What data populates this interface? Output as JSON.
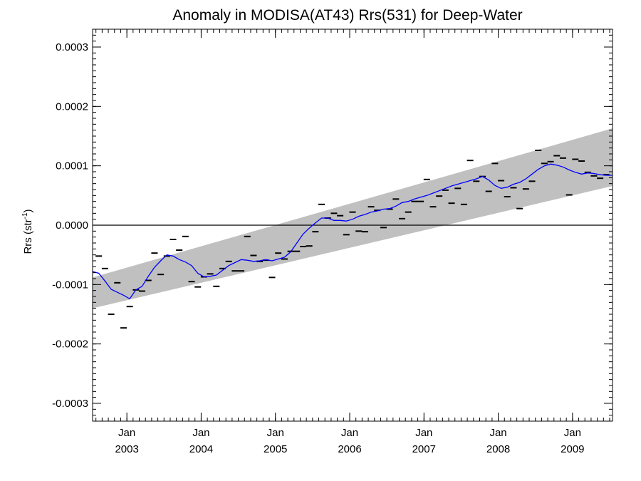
{
  "chart_data": {
    "type": "scatter",
    "title": "Anomaly in MODISA(AT43) Rrs(531) for Deep-Water",
    "ylabel": "Rrs (str",
    "ylabel_sup": "-1",
    "ylabel_close": ")",
    "xlim": [
      "2002-07-15",
      "2009-07-15"
    ],
    "ylim": [
      -0.00033,
      0.00033
    ],
    "y_ticks": [
      -0.0003,
      -0.0002,
      -0.0001,
      0.0,
      0.0001,
      0.0002,
      0.0003
    ],
    "y_tick_labels": [
      "-0.0003",
      "-0.0002",
      "-0.0001",
      "0.0000",
      "0.0001",
      "0.0002",
      "0.0003"
    ],
    "x_ticks": [
      {
        "date": "2003-01-01",
        "month": "Jan",
        "year": "2003"
      },
      {
        "date": "2004-01-01",
        "month": "Jan",
        "year": "2004"
      },
      {
        "date": "2005-01-01",
        "month": "Jan",
        "year": "2005"
      },
      {
        "date": "2006-01-01",
        "month": "Jan",
        "year": "2006"
      },
      {
        "date": "2007-01-01",
        "month": "Jan",
        "year": "2007"
      },
      {
        "date": "2008-01-01",
        "month": "Jan",
        "year": "2008"
      },
      {
        "date": "2009-01-01",
        "month": "Jan",
        "year": "2009"
      }
    ],
    "zero_line": 0.0,
    "band": {
      "color": "#c0c0c0",
      "lower": [
        [
          "2002-07-15",
          -0.00014
        ],
        [
          "2009-07-15",
          6.6e-05
        ]
      ],
      "upper": [
        [
          "2002-07-15",
          -8.8e-05
        ],
        [
          "2009-07-15",
          0.000163
        ]
      ]
    },
    "series": [
      {
        "kind": "monthly",
        "marker": "dash",
        "color": "#000000",
        "x": [
          "2002-08",
          "2002-09",
          "2002-10",
          "2002-11",
          "2002-12",
          "2003-01",
          "2003-02",
          "2003-03",
          "2003-04",
          "2003-05",
          "2003-06",
          "2003-07",
          "2003-08",
          "2003-09",
          "2003-10",
          "2003-11",
          "2003-12",
          "2004-01",
          "2004-02",
          "2004-03",
          "2004-04",
          "2004-05",
          "2004-06",
          "2004-07",
          "2004-08",
          "2004-09",
          "2004-10",
          "2004-11",
          "2004-12",
          "2005-01",
          "2005-02",
          "2005-03",
          "2005-04",
          "2005-05",
          "2005-06",
          "2005-07",
          "2005-08",
          "2005-09",
          "2005-10",
          "2005-11",
          "2005-12",
          "2006-01",
          "2006-02",
          "2006-03",
          "2006-04",
          "2006-05",
          "2006-06",
          "2006-07",
          "2006-08",
          "2006-09",
          "2006-10",
          "2006-11",
          "2006-12",
          "2007-01",
          "2007-02",
          "2007-03",
          "2007-04",
          "2007-05",
          "2007-06",
          "2007-07",
          "2007-08",
          "2007-09",
          "2007-10",
          "2007-11",
          "2007-12",
          "2008-01",
          "2008-02",
          "2008-03",
          "2008-04",
          "2008-05",
          "2008-06",
          "2008-07",
          "2008-08",
          "2008-09",
          "2008-10",
          "2008-11",
          "2008-12",
          "2009-01",
          "2009-02",
          "2009-03",
          "2009-04",
          "2009-05",
          "2009-06"
        ],
        "y": [
          -5.2e-05,
          -7.3e-05,
          -0.00015,
          -9.7e-05,
          -0.000173,
          -0.000137,
          -0.000109,
          -0.000111,
          -9.3e-05,
          -4.7e-05,
          -8.3e-05,
          -5.2e-05,
          -2.4e-05,
          -4.2e-05,
          -1.9e-05,
          -9.5e-05,
          -0.000104,
          -8.7e-05,
          -8.2e-05,
          -0.000103,
          -7.3e-05,
          -6.1e-05,
          -7.7e-05,
          -7.7e-05,
          -1.9e-05,
          -5.1e-05,
          -6.1e-05,
          -5.9e-05,
          -8.8e-05,
          -4.7e-05,
          -5.7e-05,
          -4.4e-05,
          -4.4e-05,
          -3.6e-05,
          -3.5e-05,
          -1.1e-05,
          3.5e-05,
          1.2e-05,
          2e-05,
          1.6e-05,
          -1.6e-05,
          2.2e-05,
          -1e-05,
          -1.1e-05,
          3.1e-05,
          2.5e-05,
          -4e-06,
          2.7e-05,
          4.4e-05,
          1.1e-05,
          2.2e-05,
          4e-05,
          4e-05,
          7.7e-05,
          3.1e-05,
          4.9e-05,
          5.9e-05,
          3.7e-05,
          6.2e-05,
          3.5e-05,
          0.000109,
          7.4e-05,
          8.2e-05,
          5.7e-05,
          0.000104,
          7.5e-05,
          4.8e-05,
          6.3e-05,
          2.8e-05,
          6.1e-05,
          7.4e-05,
          0.000126,
          0.000104,
          0.000107,
          0.000117,
          0.000113,
          5.1e-05,
          0.000111,
          0.000108,
          8.9e-05,
          8.3e-05,
          7.9e-05,
          8.5e-05
        ]
      },
      {
        "kind": "running-mean",
        "marker": "line",
        "color": "#0000ff",
        "x": [
          "2002-07-15",
          "2002-08-15",
          "2002-09-15",
          "2002-10-15",
          "2002-11-15",
          "2002-12-15",
          "2003-01-15",
          "2003-02-15",
          "2003-03-15",
          "2003-04-15",
          "2003-05-15",
          "2003-06-15",
          "2003-07-15",
          "2003-08-15",
          "2003-09-15",
          "2003-10-15",
          "2003-11-15",
          "2003-12-15",
          "2004-01-15",
          "2004-02-15",
          "2004-03-15",
          "2004-04-15",
          "2004-05-15",
          "2004-06-15",
          "2004-07-15",
          "2004-08-15",
          "2004-09-15",
          "2004-10-15",
          "2004-11-15",
          "2004-12-15",
          "2005-01-15",
          "2005-02-15",
          "2005-03-15",
          "2005-04-15",
          "2005-05-15",
          "2005-06-15",
          "2005-07-15",
          "2005-08-15",
          "2005-09-15",
          "2005-10-15",
          "2005-11-15",
          "2005-12-15",
          "2006-01-15",
          "2006-02-15",
          "2006-03-15",
          "2006-04-15",
          "2006-05-15",
          "2006-06-15",
          "2006-07-15",
          "2006-08-15",
          "2006-09-15",
          "2006-10-15",
          "2006-11-15",
          "2006-12-15",
          "2007-01-15",
          "2007-02-15",
          "2007-03-15",
          "2007-04-15",
          "2007-05-15",
          "2007-06-15",
          "2007-07-15",
          "2007-08-15",
          "2007-09-15",
          "2007-10-15",
          "2007-11-15",
          "2007-12-15",
          "2008-01-15",
          "2008-02-15",
          "2008-03-15",
          "2008-04-15",
          "2008-05-15",
          "2008-06-15",
          "2008-07-15",
          "2008-08-15",
          "2008-09-15",
          "2008-10-15",
          "2008-11-15",
          "2008-12-15",
          "2009-01-15",
          "2009-02-15",
          "2009-03-15",
          "2009-04-15",
          "2009-05-15",
          "2009-06-15",
          "2009-07-15"
        ],
        "y": [
          -7.8e-05,
          -8.1e-05,
          -9.4e-05,
          -0.000108,
          -0.000113,
          -0.000118,
          -0.000124,
          -0.000109,
          -0.000103,
          -8.6e-05,
          -7.1e-05,
          -6e-05,
          -5e-05,
          -5.2e-05,
          -5.8e-05,
          -6.2e-05,
          -6.8e-05,
          -8.1e-05,
          -8.7e-05,
          -8.6e-05,
          -8.4e-05,
          -7.6e-05,
          -6.8e-05,
          -6.3e-05,
          -5.8e-05,
          -5.9e-05,
          -6.1e-05,
          -6e-05,
          -5.8e-05,
          -6e-05,
          -5.7e-05,
          -5.4e-05,
          -4.5e-05,
          -3e-05,
          -1.5e-05,
          -5e-06,
          4e-06,
          1.2e-05,
          1.2e-05,
          8e-06,
          8e-06,
          7e-06,
          1e-05,
          1.5e-05,
          1.8e-05,
          2.2e-05,
          2.4e-05,
          2.7e-05,
          2.8e-05,
          3.2e-05,
          3.8e-05,
          4e-05,
          4.4e-05,
          4.7e-05,
          5e-05,
          5.4e-05,
          5.8e-05,
          6.2e-05,
          6.6e-05,
          6.9e-05,
          7.2e-05,
          7.5e-05,
          7.8e-05,
          8.2e-05,
          7.6e-05,
          6.7e-05,
          6.2e-05,
          6.4e-05,
          6.9e-05,
          7.2e-05,
          7.8e-05,
          8.6e-05,
          9.4e-05,
          0.0001,
          0.000103,
          0.000101,
          9.8e-05,
          9.3e-05,
          8.9e-05,
          8.6e-05,
          8.8e-05,
          8.7e-05,
          8.5e-05,
          8.4e-05,
          8.4e-05
        ]
      }
    ]
  }
}
